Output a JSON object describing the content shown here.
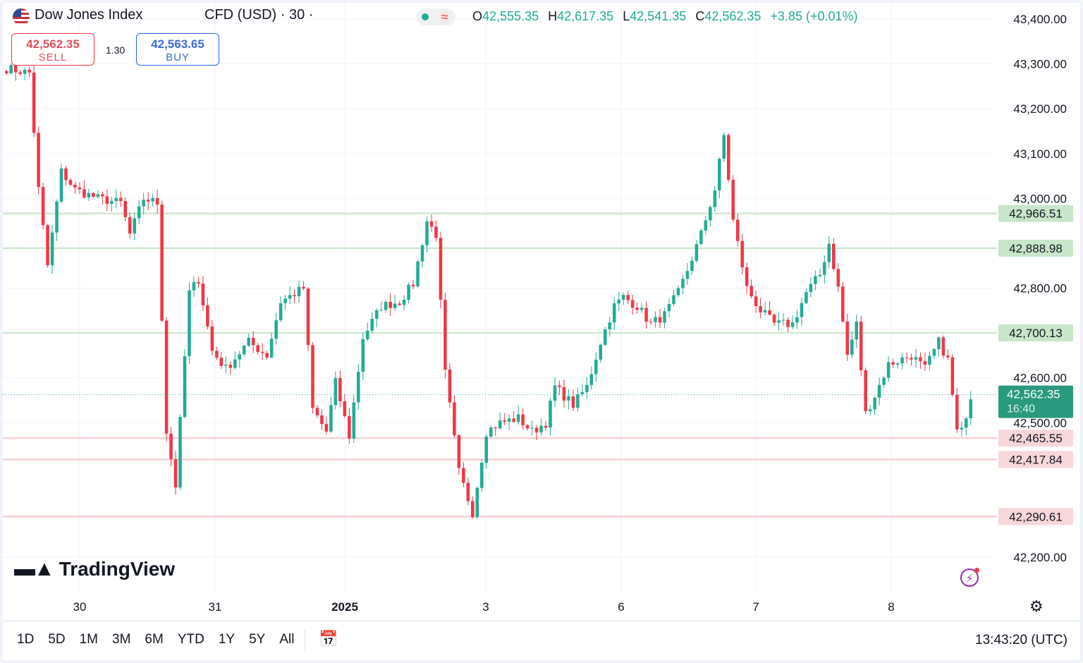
{
  "header": {
    "symbol": "Dow Jones Index",
    "instrument": "CFD (USD) · 30 ·",
    "ohlc": {
      "o_label": "O",
      "o_value": "42,555.35",
      "h_label": "H",
      "h_value": "42,617.35",
      "l_label": "L",
      "l_value": "42,541.35",
      "c_label": "C",
      "c_value": "42,562.35",
      "change": "+3.85 (+0.01%)"
    }
  },
  "trade": {
    "sell_price": "42,562.35",
    "sell_label": "SELL",
    "spread": "1.30",
    "buy_price": "42,563.65",
    "buy_label": "BUY"
  },
  "logo": "TradingView",
  "bottom_bar": {
    "ranges": [
      "1D",
      "5D",
      "1M",
      "3M",
      "6M",
      "YTD",
      "1Y",
      "5Y",
      "All"
    ],
    "clock": "13:43:20 (UTC)"
  },
  "colors": {
    "up": "#22ab94",
    "down": "#f23645",
    "level_green": "#c8e6c9",
    "level_red": "#f5c6cb"
  },
  "icons": [
    "us-flag-icon",
    "market-status-icon",
    "tradingview-logo-icon",
    "flash-icon",
    "settings-gear-icon",
    "calendar-icon"
  ],
  "chart_data": {
    "type": "candlestick",
    "timeframe": "30",
    "y_ticks": [
      43400,
      43300,
      43200,
      43100,
      43000,
      42800,
      42600,
      42500,
      42200
    ],
    "y_tick_labels": [
      "43,400.00",
      "43,300.00",
      "43,200.00",
      "43,100.00",
      "43,000.00",
      "42,800.00",
      "42,600.00",
      "42,500.00",
      "42,200.00"
    ],
    "ylim": [
      42200,
      43400
    ],
    "x_ticks": [
      "30",
      "31",
      "2025",
      "3",
      "6",
      "7",
      "8"
    ],
    "x_tick_bold": [
      false,
      false,
      true,
      false,
      false,
      false,
      false
    ],
    "current_price": {
      "value": 42562.35,
      "label": "42,562.35",
      "countdown": "16:40"
    },
    "levels": [
      {
        "value": 42966.51,
        "label": "42,966.51",
        "kind": "resistance"
      },
      {
        "value": 42888.98,
        "label": "42,888.98",
        "kind": "resistance"
      },
      {
        "value": 42700.13,
        "label": "42,700.13",
        "kind": "resistance"
      },
      {
        "value": 42465.55,
        "label": "42,465.55",
        "kind": "support"
      },
      {
        "value": 42417.84,
        "label": "42,417.84",
        "kind": "support"
      },
      {
        "value": 42290.61,
        "label": "42,290.61",
        "kind": "support"
      }
    ],
    "anchors": [
      [
        0,
        43290
      ],
      [
        5,
        43280
      ],
      [
        7,
        43020
      ],
      [
        9,
        42850
      ],
      [
        12,
        43060
      ],
      [
        15,
        43020
      ],
      [
        20,
        43000
      ],
      [
        25,
        42990
      ],
      [
        27,
        42920
      ],
      [
        30,
        43000
      ],
      [
        33,
        42990
      ],
      [
        35,
        42480
      ],
      [
        37,
        42360
      ],
      [
        40,
        42790
      ],
      [
        42,
        42820
      ],
      [
        45,
        42660
      ],
      [
        48,
        42620
      ],
      [
        53,
        42680
      ],
      [
        57,
        42650
      ],
      [
        60,
        42770
      ],
      [
        65,
        42800
      ],
      [
        67,
        42530
      ],
      [
        70,
        42480
      ],
      [
        72,
        42590
      ],
      [
        75,
        42470
      ],
      [
        78,
        42690
      ],
      [
        82,
        42760
      ],
      [
        86,
        42770
      ],
      [
        89,
        42810
      ],
      [
        92,
        42950
      ],
      [
        94,
        42920
      ],
      [
        96,
        42610
      ],
      [
        99,
        42390
      ],
      [
        102,
        42300
      ],
      [
        105,
        42480
      ],
      [
        108,
        42500
      ],
      [
        112,
        42510
      ],
      [
        115,
        42480
      ],
      [
        118,
        42500
      ],
      [
        120,
        42580
      ],
      [
        124,
        42540
      ],
      [
        127,
        42580
      ],
      [
        130,
        42680
      ],
      [
        133,
        42760
      ],
      [
        135,
        42780
      ],
      [
        138,
        42760
      ],
      [
        141,
        42720
      ],
      [
        144,
        42740
      ],
      [
        147,
        42790
      ],
      [
        149,
        42840
      ],
      [
        152,
        42920
      ],
      [
        155,
        43020
      ],
      [
        157,
        43140
      ],
      [
        159,
        42950
      ],
      [
        162,
        42800
      ],
      [
        165,
        42750
      ],
      [
        168,
        42720
      ],
      [
        172,
        42720
      ],
      [
        175,
        42790
      ],
      [
        178,
        42830
      ],
      [
        180,
        42900
      ],
      [
        182,
        42800
      ],
      [
        184,
        42650
      ],
      [
        186,
        42720
      ],
      [
        188,
        42520
      ],
      [
        190,
        42560
      ],
      [
        193,
        42630
      ],
      [
        198,
        42650
      ],
      [
        201,
        42620
      ],
      [
        204,
        42680
      ],
      [
        206,
        42640
      ],
      [
        208,
        42480
      ],
      [
        209,
        42480
      ],
      [
        211,
        42560
      ]
    ],
    "n_candles": 212
  }
}
